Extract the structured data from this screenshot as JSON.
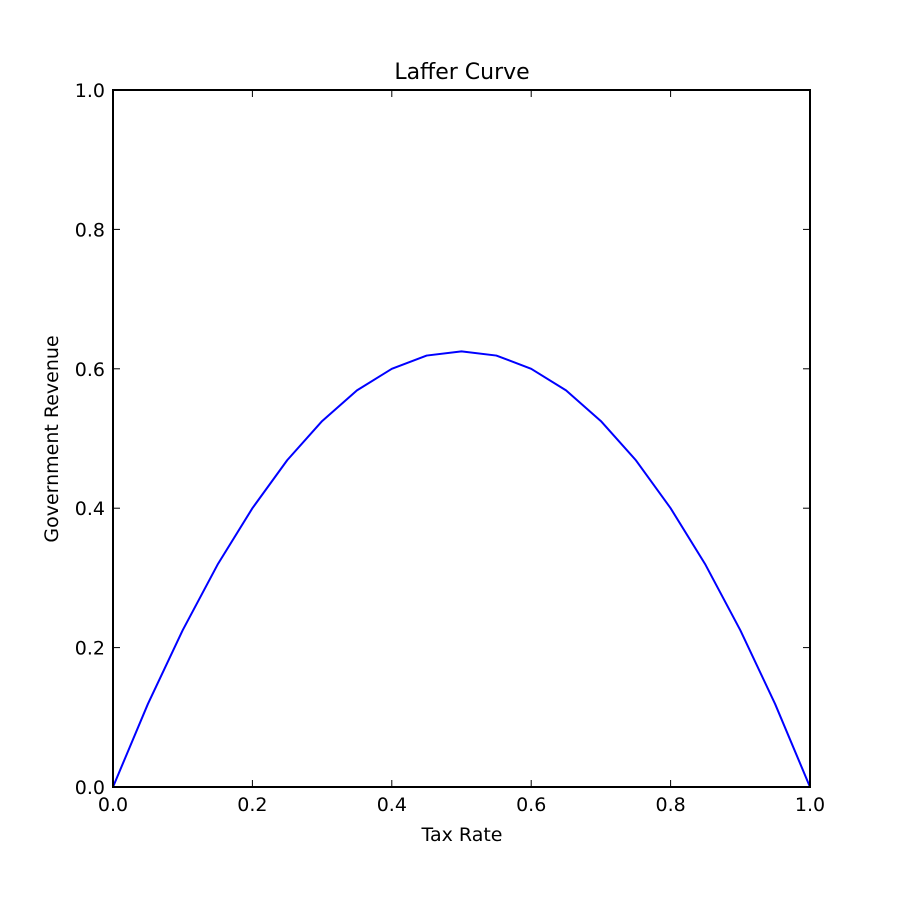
{
  "chart_data": {
    "type": "line",
    "title": "Laffer Curve",
    "xlabel": "Tax Rate",
    "ylabel": "Government Revenue",
    "xlim": [
      0.0,
      1.0
    ],
    "ylim": [
      0.0,
      1.0
    ],
    "xticks": [
      "0.0",
      "0.2",
      "0.4",
      "0.6",
      "0.8",
      "1.0"
    ],
    "yticks": [
      "0.0",
      "0.2",
      "0.4",
      "0.6",
      "0.8",
      "1.0"
    ],
    "grid": false,
    "legend": "none",
    "series": [
      {
        "color": "#0000ff",
        "x": [
          0.0,
          0.05,
          0.1,
          0.15,
          0.2,
          0.25,
          0.3,
          0.35,
          0.4,
          0.45,
          0.5,
          0.55,
          0.6,
          0.65,
          0.7,
          0.75,
          0.8,
          0.85,
          0.9,
          0.95,
          1.0
        ],
        "y": [
          0.0,
          0.119,
          0.225,
          0.319,
          0.4,
          0.469,
          0.525,
          0.569,
          0.6,
          0.619,
          0.625,
          0.619,
          0.6,
          0.569,
          0.525,
          0.469,
          0.4,
          0.319,
          0.225,
          0.119,
          0.0
        ]
      }
    ]
  }
}
